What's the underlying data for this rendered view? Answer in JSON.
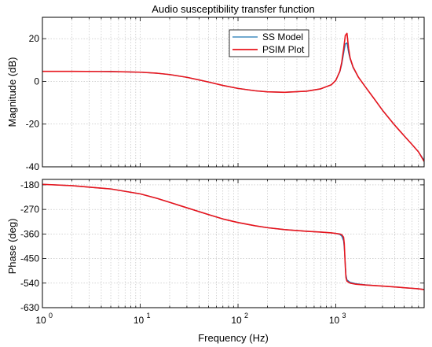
{
  "chart_data": [
    {
      "type": "line",
      "title": "Audio susceptibility transfer function",
      "xlabel": "",
      "ylabel": "Magnitude (dB)",
      "xscale": "log",
      "xlim": [
        1,
        8000
      ],
      "ylim": [
        -40,
        30
      ],
      "yticks": [
        -40,
        -20,
        0,
        20
      ],
      "grid": true,
      "legend": "top-right",
      "series": [
        {
          "name": "SS Model",
          "color": "#1f77b4",
          "x": [
            1,
            2,
            5,
            10,
            15,
            20,
            30,
            50,
            70,
            100,
            150,
            200,
            300,
            500,
            700,
            900,
            1000,
            1100,
            1150,
            1200,
            1250,
            1300,
            1350,
            1400,
            1500,
            1700,
            2000,
            2500,
            3000,
            4000,
            5000,
            6000,
            7000,
            8000
          ],
          "y": [
            4.7,
            4.7,
            4.6,
            4.3,
            3.8,
            3.2,
            1.9,
            -0.3,
            -1.9,
            -3.3,
            -4.4,
            -4.9,
            -5.1,
            -4.6,
            -3.5,
            -1.6,
            0.5,
            4.5,
            8.0,
            13.0,
            17.5,
            18.0,
            13.5,
            10.5,
            6.5,
            2.0,
            -2.5,
            -8.5,
            -13.5,
            -20.5,
            -25.5,
            -29.5,
            -33.0,
            -37.0
          ]
        },
        {
          "name": "PSIM Plot",
          "color": "#e8141c",
          "x": [
            1,
            2,
            5,
            10,
            15,
            20,
            30,
            50,
            70,
            100,
            150,
            200,
            300,
            500,
            700,
            900,
            1000,
            1100,
            1150,
            1200,
            1250,
            1300,
            1350,
            1400,
            1500,
            1700,
            2000,
            2500,
            3000,
            4000,
            5000,
            6000,
            7000,
            8000
          ],
          "y": [
            4.7,
            4.7,
            4.6,
            4.3,
            3.8,
            3.2,
            1.9,
            -0.3,
            -1.9,
            -3.3,
            -4.4,
            -4.9,
            -5.1,
            -4.6,
            -3.5,
            -1.6,
            0.5,
            4.8,
            9.0,
            15.0,
            21.5,
            22.5,
            15.5,
            11.0,
            6.8,
            2.0,
            -2.5,
            -8.5,
            -13.5,
            -20.5,
            -25.5,
            -29.5,
            -33.0,
            -37.5
          ]
        }
      ]
    },
    {
      "type": "line",
      "title": "",
      "xlabel": "Frequency  (Hz)",
      "ylabel": "Phase (deg)",
      "xscale": "log",
      "xlim": [
        1,
        8000
      ],
      "ylim": [
        -630,
        -160
      ],
      "yticks": [
        -630,
        -540,
        -450,
        -360,
        -270,
        -180
      ],
      "xticks": [
        1,
        10,
        100,
        1000
      ],
      "xticklabels": [
        "10",
        "10",
        "10",
        "10"
      ],
      "xtickexponents": [
        "0",
        "1",
        "2",
        "3"
      ],
      "grid": true,
      "series": [
        {
          "name": "SS Model",
          "color": "#1f77b4",
          "x": [
            1,
            2,
            5,
            10,
            15,
            20,
            30,
            50,
            70,
            100,
            150,
            200,
            300,
            500,
            700,
            900,
            1000,
            1100,
            1150,
            1200,
            1220,
            1250,
            1270,
            1300,
            1400,
            1600,
            2000,
            3000,
            4000,
            5000,
            6000,
            7000,
            8000
          ],
          "y": [
            -178,
            -183,
            -195,
            -213,
            -230,
            -244,
            -264,
            -289,
            -305,
            -318,
            -330,
            -337,
            -344,
            -350,
            -353,
            -356,
            -358,
            -362,
            -368,
            -385,
            -410,
            -470,
            -510,
            -528,
            -537,
            -542,
            -546,
            -551,
            -554,
            -557,
            -559,
            -561,
            -563
          ]
        },
        {
          "name": "PSIM Plot",
          "color": "#e8141c",
          "x": [
            1,
            2,
            5,
            10,
            15,
            20,
            30,
            50,
            70,
            100,
            150,
            200,
            300,
            500,
            700,
            900,
            1000,
            1100,
            1150,
            1200,
            1220,
            1250,
            1270,
            1300,
            1400,
            1600,
            2000,
            3000,
            4000,
            5000,
            6000,
            7000,
            8000
          ],
          "y": [
            -178,
            -183,
            -195,
            -213,
            -230,
            -244,
            -264,
            -289,
            -305,
            -318,
            -330,
            -337,
            -344,
            -350,
            -353,
            -356,
            -358,
            -360,
            -363,
            -372,
            -395,
            -480,
            -520,
            -533,
            -540,
            -544,
            -547,
            -551,
            -554,
            -557,
            -559,
            -561,
            -564
          ]
        }
      ]
    }
  ]
}
